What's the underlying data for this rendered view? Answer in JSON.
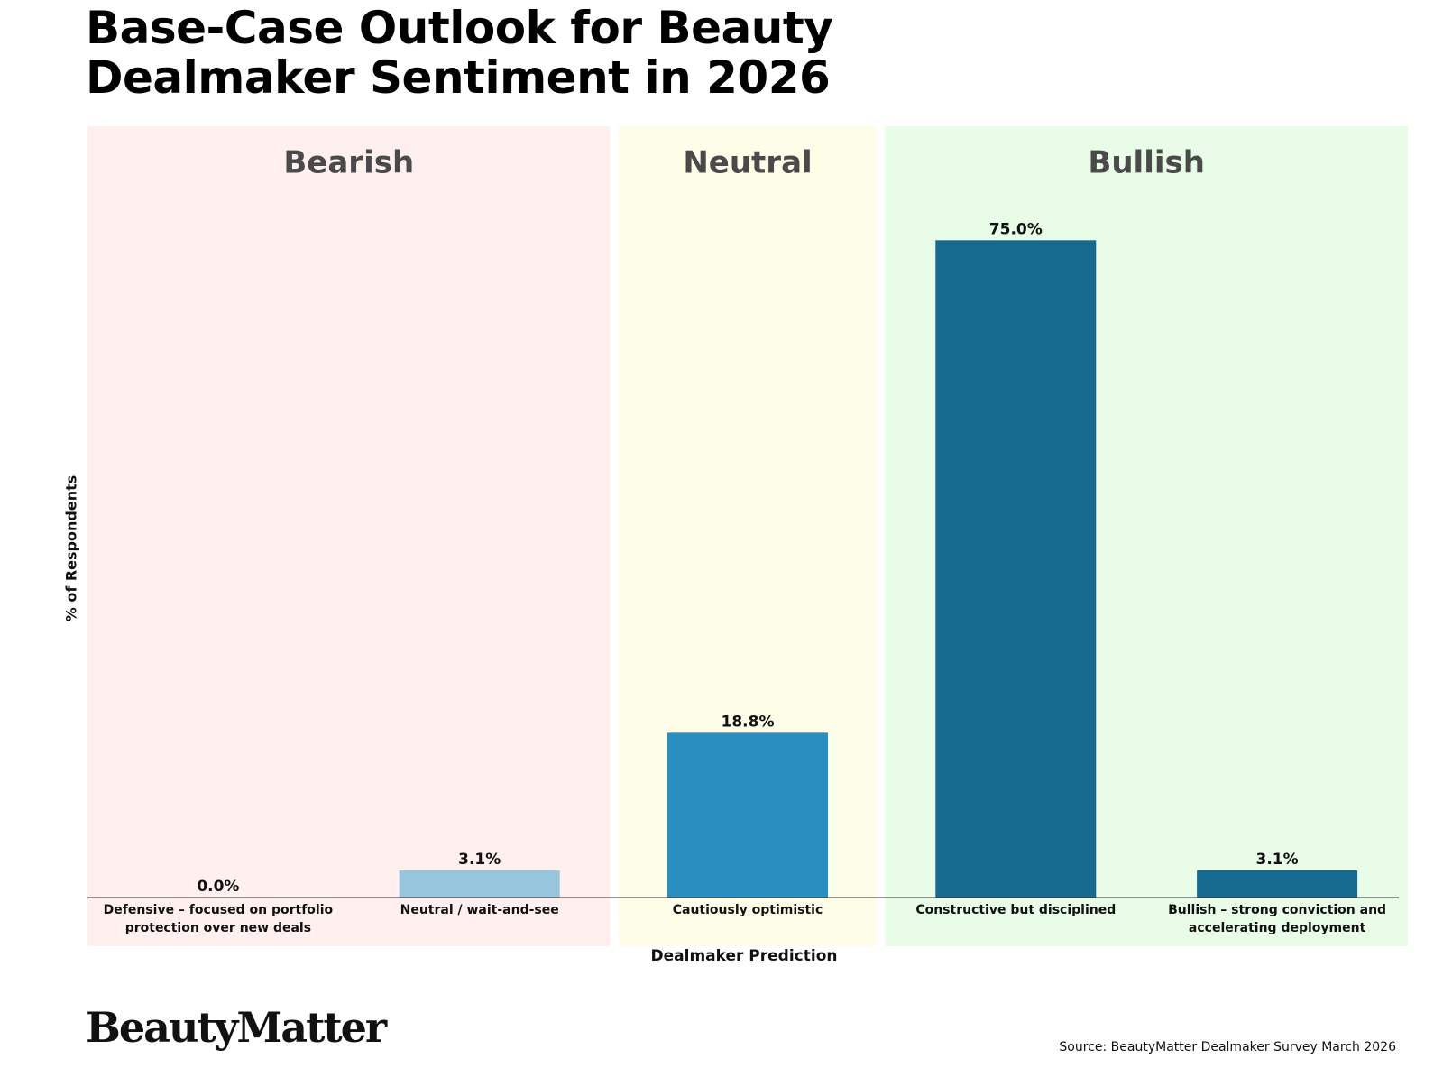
{
  "chart_data": {
    "type": "bar",
    "title": "Base-Case Outlook for Beauty Dealmaker Sentiment in 2026",
    "x_label": "Dealmaker Prediction",
    "y_label": "% of Respondents",
    "categories": [
      "Defensive – focused on portfolio protection over new deals",
      "Neutral / wait-and-see",
      "Cautiously optimistic",
      "Constructive but disciplined",
      "Bullish – strong conviction and accelerating deployment"
    ],
    "values": [
      0.0,
      3.1,
      18.8,
      75.0,
      3.1
    ],
    "value_labels": [
      "0.0%",
      "3.1%",
      "18.8%",
      "75.0%",
      "3.1%"
    ],
    "colors": [
      "#97c5dc",
      "#97c5dc",
      "#2a8fc0",
      "#176b90",
      "#176b90"
    ],
    "ylim": [
      0,
      88
    ],
    "groups": [
      {
        "name": "Bearish",
        "color": "#fff0ef",
        "size": 2
      },
      {
        "name": "Neutral",
        "color": "#fefde8",
        "size": 1
      },
      {
        "name": "Bullish",
        "color": "#e8fce8",
        "size": 2
      }
    ],
    "brand": "BeautyMatter",
    "source": "Source: BeautyMatter Dealmaker Survey March 2026"
  }
}
